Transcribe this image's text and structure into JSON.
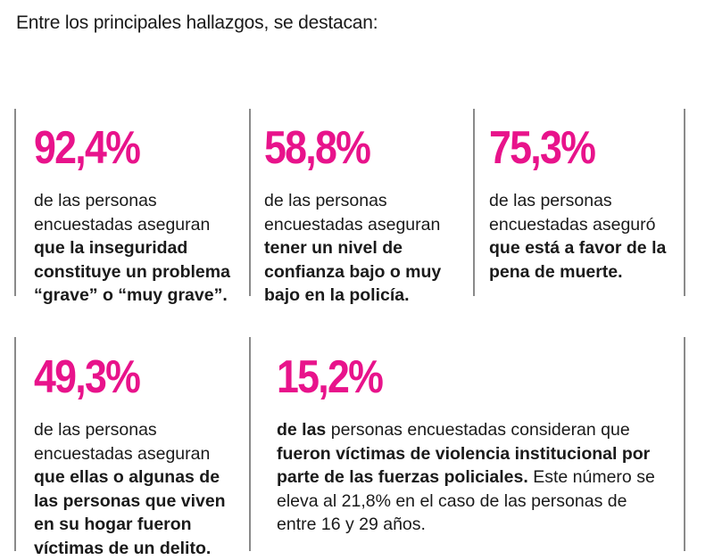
{
  "intro": "Entre los principales hallazgos, se destacan:",
  "accent_color": "#e8138b",
  "stats": [
    {
      "percent": "92,4%",
      "lead": "de las personas encuestadas aseguran",
      "bold": "que la inseguridad constituye un problema “grave” o “muy grave”.",
      "tail": ""
    },
    {
      "percent": "58,8%",
      "lead": "de las personas encuestadas aseguran",
      "bold": "tener un nivel de confianza bajo o muy bajo en la policía.",
      "tail": ""
    },
    {
      "percent": "75,3%",
      "lead": "de las personas encuestadas aseguró",
      "bold": "que está a favor de la pena de muerte.",
      "tail": ""
    },
    {
      "percent": "49,3%",
      "lead": "de las personas encuestadas aseguran",
      "bold": "que ellas o algunas de las personas que viven en su hogar fueron víctimas de un delito.",
      "tail": ""
    },
    {
      "percent": "15,2%",
      "lead_bold1": "de las",
      "lead": "personas encuestadas consideran que",
      "bold": "fueron víctimas de violencia institucional por parte de las fuerzas policiales.",
      "tail": "Este número se eleva al 21,8% en el caso de las personas de entre 16 y 29 años."
    }
  ]
}
